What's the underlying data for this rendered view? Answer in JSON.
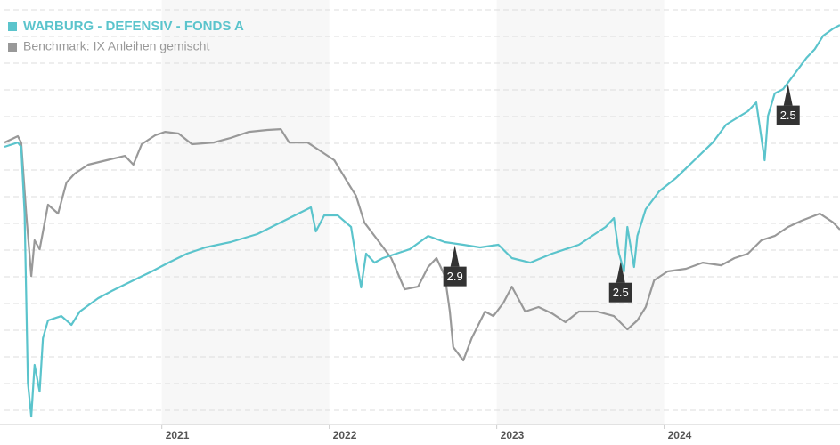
{
  "chart_data": {
    "type": "line",
    "series": [
      {
        "name": "WARBURG - DEFENSIV - FONDS A",
        "color": "#5bc4cc",
        "x": [
          2020.06,
          2020.14,
          2020.16,
          2020.18,
          2020.2,
          2020.22,
          2020.24,
          2020.27,
          2020.29,
          2020.32,
          2020.4,
          2020.46,
          2020.51,
          2020.62,
          2020.72,
          2020.83,
          2020.94,
          2021.04,
          2021.15,
          2021.26,
          2021.41,
          2021.57,
          2021.73,
          2021.89,
          2021.92,
          2021.97,
          2022.05,
          2022.13,
          2022.16,
          2022.19,
          2022.22,
          2022.27,
          2022.32,
          2022.4,
          2022.48,
          2022.59,
          2022.69,
          2022.8,
          2022.9,
          2023.01,
          2023.09,
          2023.2,
          2023.33,
          2023.49,
          2023.65,
          2023.7,
          2023.73,
          2023.76,
          2023.78,
          2023.82,
          2023.84,
          2023.89,
          2023.97,
          2024.07,
          2024.18,
          2024.29,
          2024.37,
          2024.5,
          2024.55,
          2024.6,
          2024.62,
          2024.66,
          2024.71,
          2024.77,
          2024.85,
          2024.9,
          2024.95,
          2025.01,
          2025.05
        ],
        "values": [
          109.73,
          110.06,
          109.73,
          104.73,
          92.06,
          89.53,
          93.4,
          91.4,
          95.4,
          96.73,
          97.06,
          96.4,
          97.4,
          98.4,
          99.06,
          99.73,
          100.4,
          101.06,
          101.73,
          102.2,
          102.6,
          103.2,
          104.2,
          105.2,
          103.4,
          104.6,
          104.6,
          103.73,
          101.4,
          99.2,
          101.73,
          101.06,
          101.4,
          101.73,
          102.06,
          103.06,
          102.6,
          102.4,
          102.2,
          102.4,
          101.4,
          101.06,
          101.73,
          102.4,
          103.73,
          104.4,
          101.73,
          100.4,
          103.73,
          100.73,
          103.06,
          105.06,
          106.4,
          107.4,
          108.73,
          110.06,
          111.4,
          112.4,
          113.06,
          108.73,
          112.06,
          113.73,
          114.06,
          115.06,
          116.4,
          117.06,
          118.06,
          118.6,
          118.86
        ]
      },
      {
        "name": "Benchmark: IX Anleihen gemischt",
        "color": "#999999",
        "x": [
          2020.06,
          2020.14,
          2020.16,
          2020.19,
          2020.22,
          2020.24,
          2020.27,
          2020.32,
          2020.38,
          2020.43,
          2020.48,
          2020.56,
          2020.67,
          2020.78,
          2020.83,
          2020.88,
          2020.96,
          2021.02,
          2021.1,
          2021.18,
          2021.31,
          2021.41,
          2021.52,
          2021.63,
          2021.71,
          2021.76,
          2021.87,
          2021.95,
          2022.03,
          2022.11,
          2022.16,
          2022.21,
          2022.29,
          2022.37,
          2022.45,
          2022.53,
          2022.59,
          2022.64,
          2022.69,
          2022.72,
          2022.74,
          2022.8,
          2022.85,
          2022.93,
          2022.98,
          2023.04,
          2023.09,
          2023.17,
          2023.25,
          2023.33,
          2023.41,
          2023.49,
          2023.6,
          2023.7,
          2023.78,
          2023.84,
          2023.89,
          2023.94,
          2024.02,
          2024.13,
          2024.23,
          2024.34,
          2024.42,
          2024.5,
          2024.58,
          2024.66,
          2024.74,
          2024.82,
          2024.93,
          2025.01,
          2025.05
        ],
        "values": [
          110.06,
          110.53,
          110.06,
          104.73,
          100.06,
          102.73,
          102.06,
          105.4,
          104.73,
          107.06,
          107.73,
          108.4,
          108.73,
          109.06,
          108.4,
          109.93,
          110.6,
          110.86,
          110.73,
          109.93,
          110.06,
          110.4,
          110.86,
          111.0,
          111.06,
          110.06,
          110.06,
          109.4,
          108.73,
          107.06,
          106.06,
          104.06,
          102.73,
          101.4,
          99.06,
          99.26,
          100.73,
          101.4,
          100.06,
          97.4,
          94.73,
          93.73,
          95.4,
          97.4,
          97.06,
          98.06,
          99.26,
          97.4,
          97.73,
          97.26,
          96.6,
          97.4,
          97.4,
          97.06,
          96.06,
          96.73,
          97.73,
          99.73,
          100.4,
          100.6,
          101.06,
          100.86,
          101.4,
          101.73,
          102.73,
          103.06,
          103.73,
          104.2,
          104.73,
          104.06,
          103.53
        ]
      }
    ],
    "annotations": [
      {
        "x": 2022.75,
        "label": "2.9"
      },
      {
        "x": 2023.74,
        "label": "2.5"
      },
      {
        "x": 2024.74,
        "label": "2.5"
      }
    ],
    "xlim": [
      2020.06,
      2025.05
    ],
    "xticks": [
      2021,
      2022,
      2023,
      2024
    ],
    "ylim": [
      89,
      121
    ],
    "yticks": [
      90,
      92,
      94,
      96,
      98,
      100,
      102,
      104,
      106,
      108,
      110,
      112,
      114,
      116,
      118,
      120
    ],
    "grid": true,
    "legend": "top-left"
  }
}
